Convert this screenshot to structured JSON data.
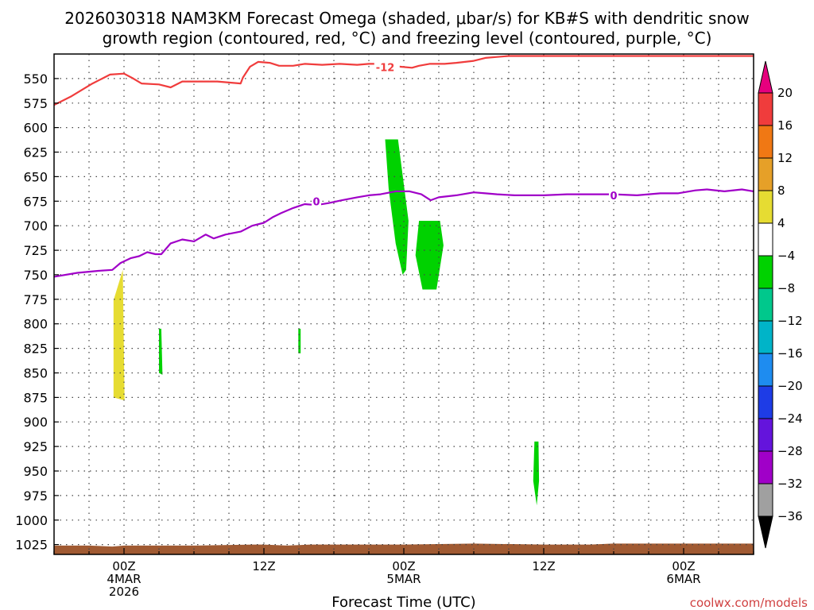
{
  "chart_data": {
    "type": "heatmap",
    "title_lines": [
      "2026030318 NAM3KM Forecast Omega (shaded, μbar/s) for KB#S with dendritic snow",
      "growth region (contoured, red, °C) and freezing level (contoured, purple, °C)"
    ],
    "xlabel": "Forecast Time (UTC)",
    "ylabel": "",
    "credit": "coolwx.com/models",
    "x_unit": "hours",
    "x_range_hours": [
      -6,
      54
    ],
    "x_ticks": [
      {
        "hour": 0,
        "lines": [
          "00Z",
          "4MAR",
          "2026"
        ]
      },
      {
        "hour": 12,
        "lines": [
          "12Z"
        ]
      },
      {
        "hour": 24,
        "lines": [
          "00Z",
          "5MAR"
        ]
      },
      {
        "hour": 36,
        "lines": [
          "12Z"
        ]
      },
      {
        "hour": 48,
        "lines": [
          "00Z",
          "6MAR"
        ]
      }
    ],
    "y_levels": [
      550,
      575,
      600,
      625,
      650,
      675,
      700,
      725,
      750,
      775,
      800,
      825,
      850,
      875,
      900,
      925,
      950,
      975,
      1000,
      1025
    ],
    "y_range_hpa": [
      525,
      1035
    ],
    "grid": true,
    "colorbar": {
      "ticks": [
        20,
        16,
        12,
        8,
        4,
        -4,
        -8,
        -12,
        -16,
        -20,
        -24,
        -28,
        -32,
        -36
      ],
      "bins": [
        {
          "from": 20,
          "to": 16,
          "color": "#f03c3c"
        },
        {
          "from": 16,
          "to": 12,
          "color": "#f07814"
        },
        {
          "from": 12,
          "to": 8,
          "color": "#e6a028"
        },
        {
          "from": 8,
          "to": 4,
          "color": "#e6dc32"
        },
        {
          "from": 4,
          "to": -4,
          "color": "#ffffff"
        },
        {
          "from": -4,
          "to": -8,
          "color": "#00d200"
        },
        {
          "from": -8,
          "to": -12,
          "color": "#00c88c"
        },
        {
          "from": -12,
          "to": -16,
          "color": "#00b4c8"
        },
        {
          "from": -16,
          "to": -20,
          "color": "#1e8cf0"
        },
        {
          "from": -20,
          "to": -24,
          "color": "#1e3ce6"
        },
        {
          "from": -24,
          "to": -28,
          "color": "#6414dc"
        },
        {
          "from": -28,
          "to": -32,
          "color": "#a000c8"
        },
        {
          "from": -32,
          "to": -36,
          "color": "#a0a0a0"
        }
      ],
      "top_arrow_color": "#e6007e",
      "bottom_arrow_color": "#000000"
    },
    "omega_regions": [
      {
        "name": "upward-yellow-a",
        "color": "#e6dc32",
        "points": [
          [
            -0.9,
            776
          ],
          [
            -0.1,
            745
          ],
          [
            0.05,
            878
          ],
          [
            -0.9,
            875
          ]
        ]
      },
      {
        "name": "green-b",
        "color": "#00d200",
        "points": [
          [
            3.0,
            805
          ],
          [
            3.2,
            805
          ],
          [
            3.3,
            852
          ],
          [
            3.0,
            850
          ]
        ]
      },
      {
        "name": "green-c",
        "color": "#00d200",
        "points": [
          [
            14.95,
            805
          ],
          [
            15.15,
            805
          ],
          [
            15.15,
            830
          ],
          [
            14.95,
            830
          ]
        ]
      },
      {
        "name": "green-d",
        "color": "#00d200",
        "points": [
          [
            22.4,
            612
          ],
          [
            23.5,
            612
          ],
          [
            24.4,
            695
          ],
          [
            24.2,
            745
          ],
          [
            23.9,
            750
          ],
          [
            23.3,
            718
          ],
          [
            22.7,
            662
          ]
        ]
      },
      {
        "name": "green-e",
        "color": "#00d200",
        "points": [
          [
            25.3,
            695
          ],
          [
            27.1,
            695
          ],
          [
            27.4,
            720
          ],
          [
            26.8,
            765
          ],
          [
            25.6,
            765
          ],
          [
            25.0,
            730
          ]
        ]
      },
      {
        "name": "green-f",
        "color": "#00d200",
        "points": [
          [
            35.2,
            920
          ],
          [
            35.55,
            920
          ],
          [
            35.6,
            960
          ],
          [
            35.4,
            985
          ],
          [
            35.1,
            960
          ]
        ]
      }
    ],
    "red_contour": {
      "label": "-12",
      "label_hour": 21.6,
      "label_hpa": 540,
      "color": "#f03c3c",
      "points": [
        [
          -6,
          577
        ],
        [
          -4.5,
          568
        ],
        [
          -2.7,
          555
        ],
        [
          -1.2,
          546
        ],
        [
          0,
          545
        ],
        [
          0.8,
          550
        ],
        [
          1.5,
          555
        ],
        [
          3.0,
          556
        ],
        [
          4.0,
          559
        ],
        [
          5.0,
          553
        ],
        [
          6.0,
          553
        ],
        [
          8.0,
          553
        ],
        [
          10.0,
          555
        ],
        [
          10.2,
          549
        ],
        [
          10.8,
          538
        ],
        [
          11.5,
          533
        ],
        [
          12.5,
          534
        ],
        [
          13.3,
          537
        ],
        [
          14.5,
          537
        ],
        [
          15.5,
          535
        ],
        [
          17.0,
          536
        ],
        [
          18.5,
          535
        ],
        [
          20.0,
          536
        ],
        [
          21.0,
          535
        ],
        [
          21.5,
          535
        ],
        [
          22.2,
          535
        ],
        [
          23.0,
          537
        ],
        [
          23.8,
          538
        ],
        [
          24.7,
          539
        ],
        [
          25.3,
          537
        ],
        [
          26.2,
          535
        ],
        [
          27.5,
          535
        ],
        [
          28.5,
          534
        ],
        [
          30.0,
          532
        ],
        [
          31.0,
          529
        ],
        [
          32.0,
          528
        ],
        [
          33.0,
          527
        ],
        [
          35.0,
          527
        ],
        [
          36.0,
          527
        ],
        [
          37.5,
          527
        ],
        [
          40.0,
          527
        ],
        [
          43.0,
          527
        ],
        [
          46.0,
          527
        ],
        [
          50.0,
          527
        ],
        [
          54.0,
          527
        ]
      ]
    },
    "purple_contour": {
      "label": "0",
      "label_positions": [
        [
          16.5,
          676
        ],
        [
          42.0,
          670
        ]
      ],
      "color": "#a000c8",
      "points": [
        [
          -6,
          752
        ],
        [
          -4,
          748
        ],
        [
          -2.2,
          746
        ],
        [
          -1.0,
          745
        ],
        [
          -0.3,
          738
        ],
        [
          0.6,
          733
        ],
        [
          1.3,
          731
        ],
        [
          2.0,
          727
        ],
        [
          2.7,
          729
        ],
        [
          3.2,
          729
        ],
        [
          4.0,
          718
        ],
        [
          5.0,
          714
        ],
        [
          6.0,
          716
        ],
        [
          7.0,
          709
        ],
        [
          7.7,
          713
        ],
        [
          8.7,
          709
        ],
        [
          10.0,
          706
        ],
        [
          11.0,
          700
        ],
        [
          12.0,
          697
        ],
        [
          12.8,
          691
        ],
        [
          13.5,
          687
        ],
        [
          14.5,
          682
        ],
        [
          15.5,
          678
        ],
        [
          16.5,
          679
        ],
        [
          17.5,
          677
        ],
        [
          18.7,
          674
        ],
        [
          20.0,
          671
        ],
        [
          21.0,
          669
        ],
        [
          22.0,
          668
        ],
        [
          23.3,
          665
        ],
        [
          24.5,
          665
        ],
        [
          25.5,
          668
        ],
        [
          26.3,
          674
        ],
        [
          27.0,
          671
        ],
        [
          28.5,
          669
        ],
        [
          30.0,
          666
        ],
        [
          31.0,
          667
        ],
        [
          32.0,
          668
        ],
        [
          33.5,
          669
        ],
        [
          35.0,
          669
        ],
        [
          36.0,
          669
        ],
        [
          38.0,
          668
        ],
        [
          40.0,
          668
        ],
        [
          42.0,
          668
        ],
        [
          44.0,
          669
        ],
        [
          46.0,
          667
        ],
        [
          47.5,
          667
        ],
        [
          49.0,
          664
        ],
        [
          50.0,
          663
        ],
        [
          51.5,
          665
        ],
        [
          53.0,
          663
        ],
        [
          54.0,
          665
        ]
      ]
    },
    "terrain_color": "#a05a32",
    "terrain_top_hpa": [
      [
        -6,
        1026
      ],
      [
        -3,
        1026
      ],
      [
        -1,
        1027
      ],
      [
        0,
        1026
      ],
      [
        6,
        1026
      ],
      [
        11,
        1025
      ],
      [
        12,
        1025
      ],
      [
        14,
        1026
      ],
      [
        16,
        1025
      ],
      [
        24,
        1025
      ],
      [
        30,
        1024
      ],
      [
        36,
        1025
      ],
      [
        40,
        1025
      ],
      [
        42,
        1024
      ],
      [
        48,
        1024
      ],
      [
        54,
        1024
      ]
    ]
  }
}
